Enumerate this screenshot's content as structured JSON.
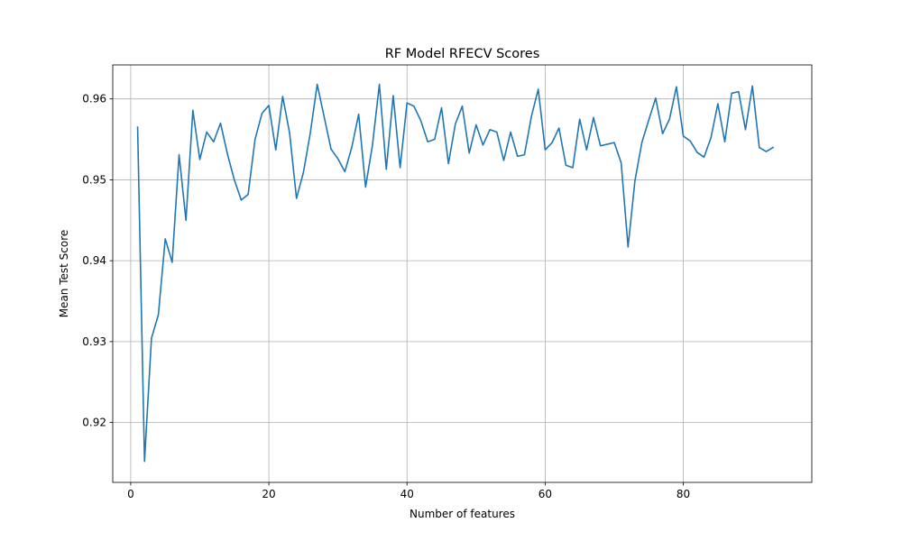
{
  "chart_data": {
    "type": "line",
    "title": "RF Model RFECV Scores",
    "xlabel": "Number of features",
    "ylabel": "Mean Test Score",
    "xlim": [
      -2.6,
      98.6
    ],
    "ylim": [
      0.9126,
      0.9642
    ],
    "x_ticks": [
      0,
      20,
      40,
      60,
      80
    ],
    "y_ticks": [
      0.92,
      0.93,
      0.94,
      0.95,
      0.96
    ],
    "x_tick_labels": [
      "0",
      "20",
      "40",
      "60",
      "80"
    ],
    "y_tick_labels": [
      "0.92",
      "0.93",
      "0.94",
      "0.95",
      "0.96"
    ],
    "grid": true,
    "line_color": "#1f77b4",
    "series": [
      {
        "x": [
          1,
          2,
          3,
          4,
          5,
          6,
          7,
          8,
          9,
          10,
          11,
          12,
          13,
          14,
          15,
          16,
          17,
          18,
          19,
          20,
          21,
          22,
          23,
          24,
          25,
          26,
          27,
          28,
          29,
          30,
          31,
          32,
          33,
          34,
          35,
          36,
          37,
          38,
          39,
          40,
          41,
          42,
          43,
          44,
          45,
          46,
          47,
          48,
          49,
          50,
          51,
          52,
          53,
          54,
          55,
          56,
          57,
          58,
          59,
          60,
          61,
          62,
          63,
          64,
          65,
          66,
          67,
          68,
          69,
          70,
          71,
          72,
          73,
          74,
          75,
          76,
          77,
          78,
          79,
          80,
          81,
          82,
          83,
          84,
          85,
          86,
          87,
          88,
          89,
          90,
          91,
          92,
          93
        ],
        "values": [
          0.9565,
          0.9152,
          0.9304,
          0.9333,
          0.9427,
          0.9398,
          0.9531,
          0.945,
          0.9586,
          0.9525,
          0.9559,
          0.9547,
          0.957,
          0.9532,
          0.95,
          0.9475,
          0.9482,
          0.955,
          0.9582,
          0.9592,
          0.9537,
          0.9603,
          0.9558,
          0.9477,
          0.9509,
          0.9558,
          0.9618,
          0.9578,
          0.9538,
          0.9526,
          0.951,
          0.954,
          0.9581,
          0.9491,
          0.9543,
          0.9618,
          0.9513,
          0.9604,
          0.9515,
          0.9595,
          0.9591,
          0.9573,
          0.9547,
          0.955,
          0.9589,
          0.952,
          0.9569,
          0.9591,
          0.9533,
          0.9568,
          0.9543,
          0.9562,
          0.9559,
          0.9524,
          0.9559,
          0.9529,
          0.9531,
          0.9578,
          0.9612,
          0.9537,
          0.9546,
          0.9564,
          0.9518,
          0.9515,
          0.9575,
          0.9537,
          0.9577,
          0.9542,
          0.9544,
          0.9546,
          0.9521,
          0.9417,
          0.9499,
          0.9546,
          0.9574,
          0.9601,
          0.9557,
          0.9575,
          0.9615,
          0.9554,
          0.9548,
          0.9534,
          0.9528,
          0.9552,
          0.9594,
          0.9547,
          0.9607,
          0.9609,
          0.9562,
          0.9616,
          0.954,
          0.9535,
          0.954
        ]
      }
    ]
  }
}
